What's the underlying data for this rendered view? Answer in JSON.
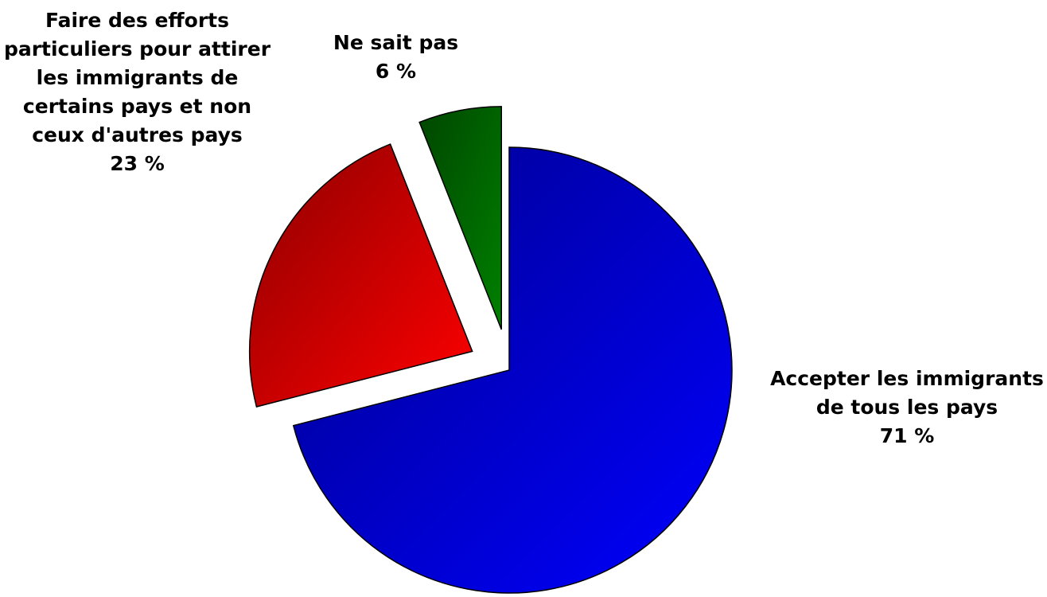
{
  "chart_data": {
    "type": "pie",
    "categories": [
      "Accepter les immigrants de tous les pays",
      "Faire des efforts particuliers pour attirer les immigrants de certains pays et non ceux d'autres pays",
      "Ne sait pas"
    ],
    "values": [
      71,
      23,
      6
    ],
    "value_labels": [
      "71 %",
      "23 %",
      "6 %"
    ],
    "colors": [
      "#0000ff",
      "#ff0000",
      "#008000"
    ]
  }
}
